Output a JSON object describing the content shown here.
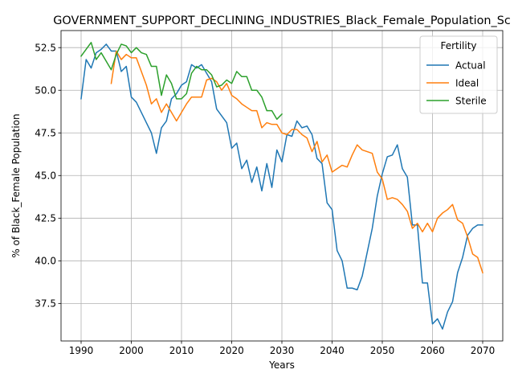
{
  "chart_data": {
    "type": "line",
    "title": "GOVERNMENT_SUPPORT_DECLINING_INDUSTRIES_Black_Female_Population_Sc",
    "xlabel": "Years",
    "ylabel": "% of Black_Female Population",
    "xlim": [
      1986,
      2074
    ],
    "ylim": [
      35.3,
      53.5
    ],
    "xticks": [
      1990,
      2000,
      2010,
      2020,
      2030,
      2040,
      2050,
      2060,
      2070
    ],
    "yticks": [
      37.5,
      40.0,
      42.5,
      45.0,
      47.5,
      50.0,
      52.5
    ],
    "ytick_labels": [
      "37.5",
      "40.0",
      "42.5",
      "45.0",
      "47.5",
      "50.0",
      "52.5"
    ],
    "grid": true,
    "legend": {
      "title": "Fertility",
      "placement": "top-right"
    },
    "series": [
      {
        "name": "Actual",
        "color": "#1f77b4",
        "x": [
          1990,
          1991,
          1992,
          1993,
          1994,
          1995,
          1996,
          1997,
          1998,
          1999,
          2000,
          2001,
          2002,
          2003,
          2004,
          2005,
          2006,
          2007,
          2008,
          2009,
          2010,
          2011,
          2012,
          2013,
          2014,
          2015,
          2016,
          2017,
          2018,
          2019,
          2020,
          2021,
          2022,
          2023,
          2024,
          2025,
          2026,
          2027,
          2028,
          2029,
          2030,
          2031,
          2032,
          2033,
          2034,
          2035,
          2036,
          2037,
          2038,
          2039,
          2040,
          2041,
          2042,
          2043,
          2044,
          2045,
          2046,
          2047,
          2048,
          2049,
          2050,
          2051,
          2052,
          2053,
          2054,
          2055,
          2056,
          2057,
          2058,
          2059,
          2060,
          2061,
          2062,
          2063,
          2064,
          2065,
          2066,
          2067,
          2068,
          2069,
          2070
        ],
        "values": [
          49.5,
          51.8,
          51.3,
          52.2,
          52.4,
          52.7,
          52.3,
          52.3,
          51.1,
          51.4,
          49.6,
          49.3,
          48.7,
          48.1,
          47.5,
          46.3,
          47.8,
          48.2,
          49.5,
          49.8,
          50.3,
          50.5,
          51.5,
          51.3,
          51.5,
          51.0,
          50.5,
          48.9,
          48.5,
          48.1,
          46.6,
          46.9,
          45.4,
          45.9,
          44.6,
          45.5,
          44.1,
          45.7,
          44.3,
          46.5,
          45.8,
          47.4,
          47.3,
          48.2,
          47.8,
          47.9,
          47.4,
          46.0,
          45.7,
          43.4,
          43.0,
          40.6,
          40.0,
          38.4,
          38.4,
          38.3,
          39.1,
          40.5,
          41.9,
          43.8,
          45.1,
          46.1,
          46.2,
          46.8,
          45.4,
          44.9,
          42.1,
          42.1,
          38.7,
          38.7,
          36.3,
          36.6,
          36.0,
          37.0,
          37.6,
          39.3,
          40.2,
          41.5,
          41.9,
          42.1,
          42.1
        ]
      },
      {
        "name": "Ideal",
        "color": "#ff7f0e",
        "x": [
          1996,
          1997,
          1998,
          1999,
          2000,
          2001,
          2002,
          2003,
          2004,
          2005,
          2006,
          2007,
          2008,
          2009,
          2010,
          2011,
          2012,
          2013,
          2014,
          2015,
          2016,
          2017,
          2018,
          2019,
          2020,
          2021,
          2022,
          2023,
          2024,
          2025,
          2026,
          2027,
          2028,
          2029,
          2030,
          2031,
          2032,
          2033,
          2034,
          2035,
          2036,
          2037,
          2038,
          2039,
          2040,
          2041,
          2042,
          2043,
          2044,
          2045,
          2046,
          2047,
          2048,
          2049,
          2050,
          2051,
          2052,
          2053,
          2054,
          2055,
          2056,
          2057,
          2058,
          2059,
          2060,
          2061,
          2062,
          2063,
          2064,
          2065,
          2066,
          2067,
          2068,
          2069,
          2070
        ],
        "values": [
          50.4,
          52.3,
          51.8,
          52.1,
          51.9,
          51.9,
          51.1,
          50.3,
          49.2,
          49.5,
          48.7,
          49.2,
          48.7,
          48.2,
          48.7,
          49.2,
          49.6,
          49.6,
          49.6,
          50.6,
          50.7,
          50.5,
          50.0,
          50.4,
          49.7,
          49.5,
          49.2,
          49.0,
          48.8,
          48.8,
          47.8,
          48.1,
          48.0,
          48.0,
          47.5,
          47.4,
          47.7,
          47.7,
          47.4,
          47.2,
          46.4,
          47.0,
          45.8,
          46.2,
          45.2,
          45.4,
          45.6,
          45.5,
          46.2,
          46.8,
          46.5,
          46.4,
          46.3,
          45.2,
          44.8,
          43.6,
          43.7,
          43.6,
          43.3,
          42.9,
          41.9,
          42.2,
          41.7,
          42.2,
          41.7,
          42.5,
          42.8,
          43.0,
          43.3,
          42.4,
          42.2,
          41.4,
          40.4,
          40.2,
          39.3
        ]
      },
      {
        "name": "Sterile",
        "color": "#2ca02c",
        "x": [
          1990,
          1991,
          1992,
          1993,
          1994,
          1995,
          1996,
          1997,
          1998,
          1999,
          2000,
          2001,
          2002,
          2003,
          2004,
          2005,
          2006,
          2007,
          2008,
          2009,
          2010,
          2011,
          2012,
          2013,
          2014,
          2015,
          2016,
          2017,
          2018,
          2019,
          2020,
          2021,
          2022,
          2023,
          2024,
          2025,
          2026,
          2027,
          2028,
          2029,
          2030
        ],
        "values": [
          52.0,
          52.4,
          52.8,
          51.8,
          52.2,
          51.7,
          51.2,
          52.1,
          52.7,
          52.6,
          52.2,
          52.5,
          52.2,
          52.1,
          51.4,
          51.4,
          49.7,
          50.9,
          50.4,
          49.5,
          49.5,
          49.8,
          51.0,
          51.4,
          51.2,
          51.2,
          50.9,
          50.2,
          50.3,
          50.6,
          50.4,
          51.1,
          50.8,
          50.8,
          50.0,
          50.0,
          49.6,
          48.8,
          48.8,
          48.3,
          48.6
        ]
      }
    ]
  }
}
